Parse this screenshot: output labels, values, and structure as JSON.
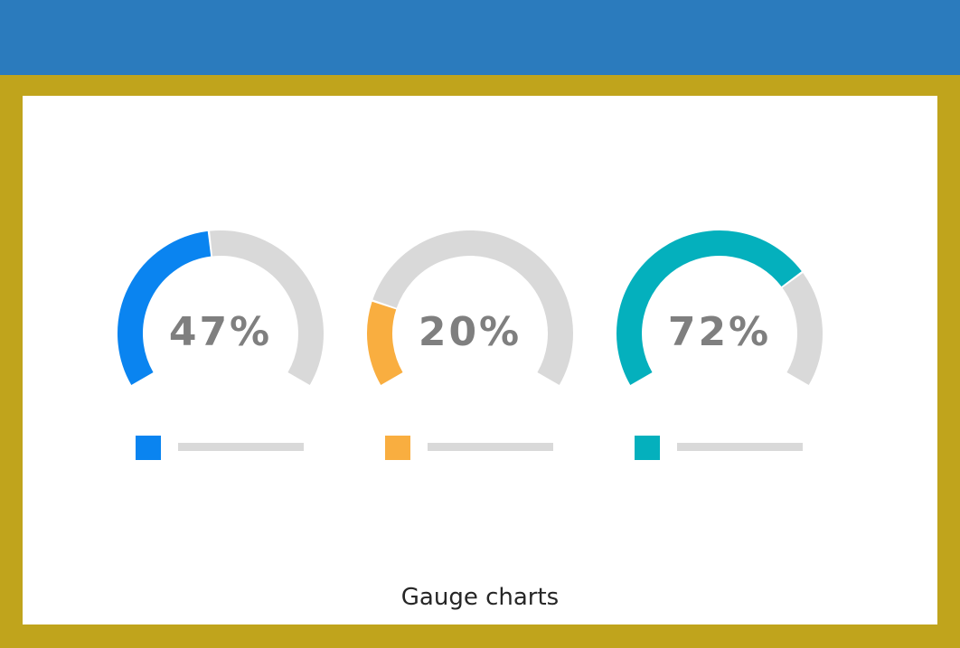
{
  "caption": "Gauge charts",
  "colors": {
    "top_bar": "#2b7bbd",
    "frame": "#c0a41c",
    "panel": "#ffffff",
    "track": "#d9d9d9",
    "text": "#7f7f7f"
  },
  "chart_data": [
    {
      "type": "gauge",
      "value": 47,
      "max": 100,
      "label": "47%",
      "color": "#0a84f0"
    },
    {
      "type": "gauge",
      "value": 20,
      "max": 100,
      "label": "20%",
      "color": "#f9ae40"
    },
    {
      "type": "gauge",
      "value": 72,
      "max": 100,
      "label": "72%",
      "color": "#04b0bd"
    }
  ]
}
